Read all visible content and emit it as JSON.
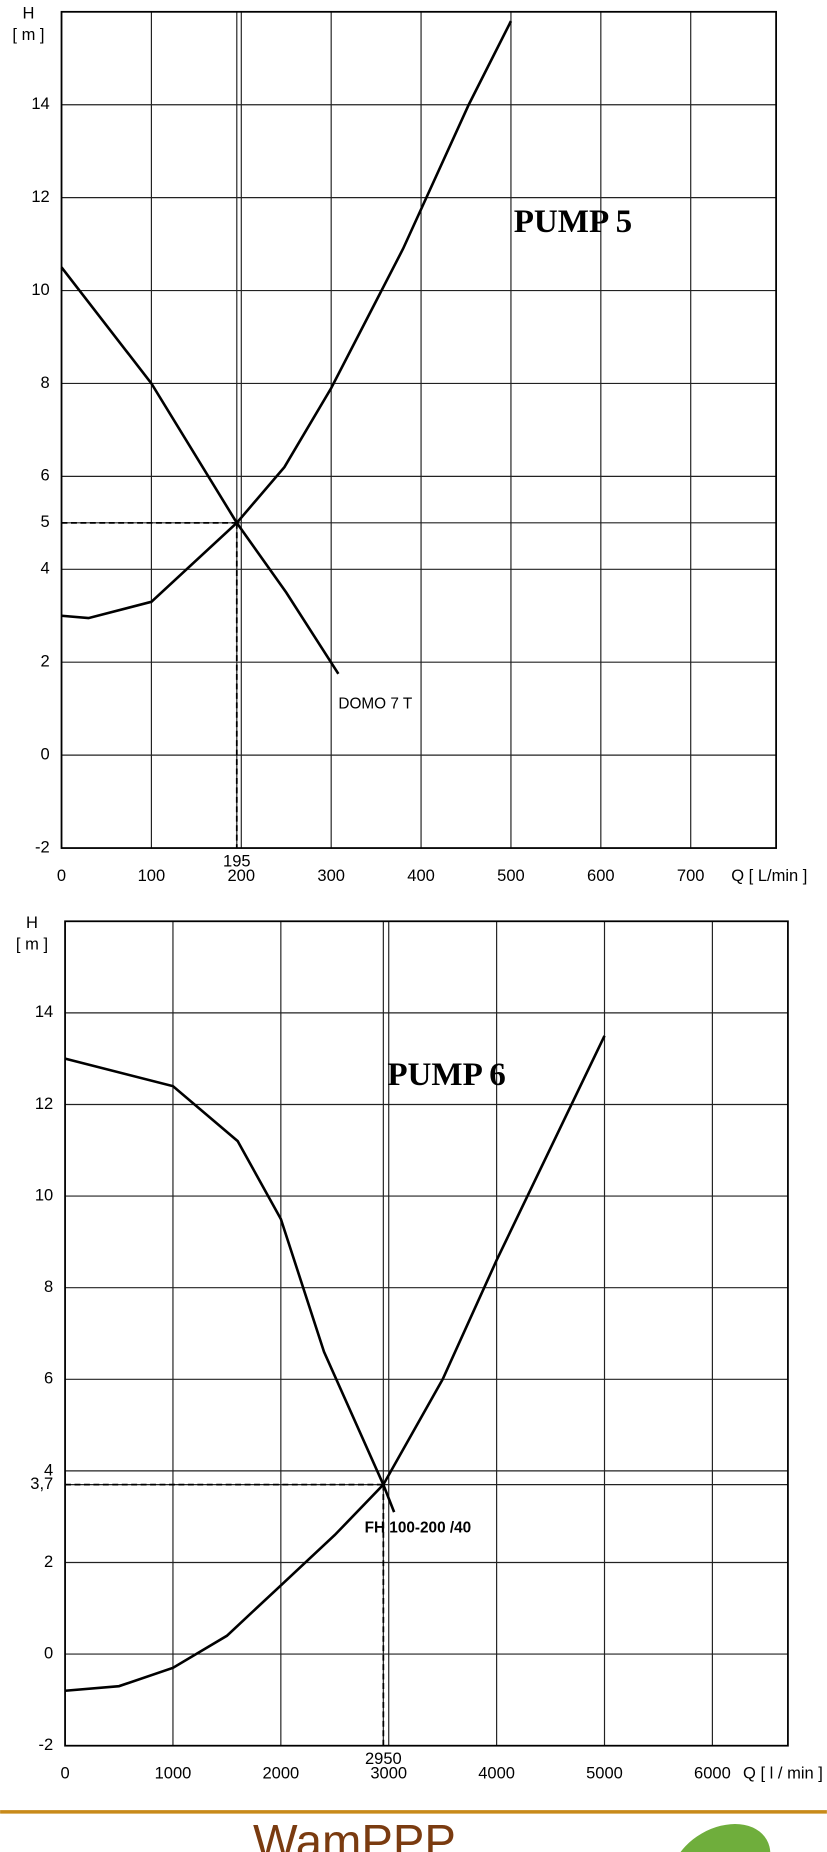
{
  "chart_data": [
    {
      "type": "line",
      "title": "PUMP 5",
      "y_label": "H",
      "y_unit": "[ m ]",
      "x_label": "Q [ L/min ]",
      "xlim": [
        0,
        795
      ],
      "ylim": [
        -2,
        16
      ],
      "xticks": [
        0,
        100,
        195,
        200,
        300,
        400,
        500,
        600,
        700
      ],
      "yticks": [
        -2,
        0,
        2,
        4,
        5,
        6,
        8,
        10,
        12,
        14
      ],
      "grid": true,
      "operating_point": {
        "x": 195,
        "y": 5
      },
      "series": [
        {
          "name": "DOMO 7 T",
          "color": "#000000",
          "x": [
            0,
            100,
            195,
            250,
            308
          ],
          "values": [
            10.5,
            8,
            5,
            3.5,
            1.75
          ]
        },
        {
          "color": "#000000",
          "x": [
            0,
            30,
            100,
            195,
            248,
            300,
            380,
            453,
            500
          ],
          "values": [
            3,
            2.95,
            3.3,
            5,
            6.2,
            7.9,
            10.9,
            14,
            15.8
          ]
        }
      ]
    },
    {
      "type": "line",
      "title": "PUMP 6",
      "y_label": "H",
      "y_unit": "[ m ]",
      "x_label": "Q [ l / min ]",
      "xlim": [
        0,
        6700
      ],
      "ylim": [
        -2,
        16
      ],
      "xticks": [
        0,
        1000,
        2000,
        2950,
        3000,
        4000,
        5000,
        6000
      ],
      "yticks": [
        -2,
        0,
        2,
        {
          "value": 3.7,
          "label": "3,7"
        },
        4,
        6,
        8,
        10,
        12,
        14
      ],
      "grid": true,
      "operating_point": {
        "x": 2950,
        "y": 3.7
      },
      "series": [
        {
          "name": "FH 100-200 /40",
          "color": "#000000",
          "x": [
            0,
            1000,
            1600,
            2000,
            2400,
            2950,
            3050
          ],
          "values": [
            13,
            12.4,
            11.2,
            9.5,
            6.6,
            3.7,
            3.1
          ]
        },
        {
          "color": "#000000",
          "x": [
            0,
            500,
            1000,
            1500,
            2000,
            2500,
            2950,
            3500,
            4000,
            5000
          ],
          "values": [
            -0.8,
            -0.7,
            -0.3,
            0.4,
            1.5,
            2.6,
            3.7,
            6,
            8.6,
            13.5
          ]
        }
      ]
    }
  ],
  "footer": "WamPPP"
}
